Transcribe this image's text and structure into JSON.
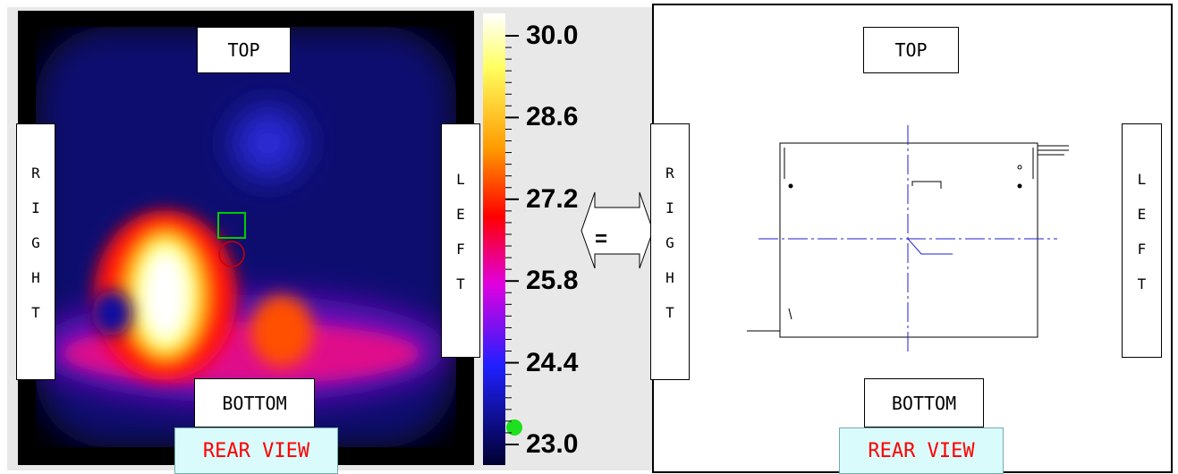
{
  "left_panel": {
    "top": "TOP",
    "right": "RIGHT",
    "left": "LEFT",
    "bottom": "BOTTOM",
    "view": "REAR VIEW"
  },
  "colorbar": {
    "range": [
      23,
      30
    ],
    "ticks": [
      {
        "value": 30,
        "label": "30.0"
      },
      {
        "value": 28.6,
        "label": "28.6"
      },
      {
        "value": 27.2,
        "label": "27.2"
      },
      {
        "value": 25.8,
        "label": "25.8"
      },
      {
        "value": 24.4,
        "label": "24.4"
      },
      {
        "value": 23,
        "label": "23.0"
      }
    ]
  },
  "arrow_label": "=",
  "right_panel": {
    "top": "TOP",
    "right": "RIGHT",
    "left": "LEFT",
    "bottom": "BOTTOM",
    "view": "REAR VIEW"
  }
}
